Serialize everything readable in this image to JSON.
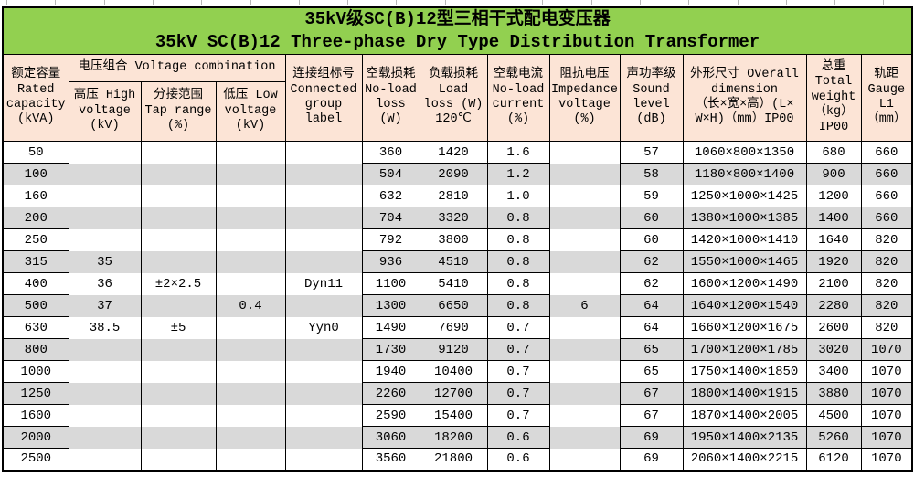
{
  "title": {
    "line1": "35kV级SC(B)12型三相干式配电变压器",
    "line2": "35kV SC(B)12 Three-phase Dry Type Distribution Transformer"
  },
  "colors": {
    "title_bg": "#92d050",
    "header_bg": "#fce4d6",
    "stripe_bg": "#d9d9d9",
    "border": "#000000"
  },
  "header": {
    "rated_capacity": "额定容量\nRated\ncapacity\n(kVA)",
    "voltage_combination_group": "电压组合 Voltage combination",
    "high_voltage": "高压 High\nvoltage\n(kV)",
    "tap_range": "分接范围\nTap range\n(%)",
    "low_voltage": "低压 Low\nvoltage\n(kV)",
    "connected_group": "连接组标号\nConnected\ngroup\nlabel",
    "no_load_loss": "空载损耗\nNo-load\nloss\n(W)",
    "load_loss": "负载损耗\nLoad\nloss (W)\n120℃",
    "no_load_current": "空载电流\nNo-load\ncurrent\n(%)",
    "impedance_voltage": "阻抗电压\nImpedance\nvoltage\n(%)",
    "sound_level": "声功率级\nSound\nlevel\n(dB)",
    "overall_dimension": "外形尺寸 Overall\ndimension\n（长×宽×高）(L×\nW×H)（mm）IP00",
    "total_weight": "总重\nTotal\nweight\n（kg）\nIP00",
    "gauge": "轨距\nGauge\nL1\n（mm）"
  },
  "table": {
    "column_keys": [
      "rated-capacity",
      "high-voltage",
      "tap-range",
      "low-voltage",
      "connected-group",
      "no-load-loss",
      "load-loss",
      "no-load-current",
      "impedance-voltage",
      "sound-level",
      "overall-dimension",
      "total-weight",
      "gauge"
    ],
    "rows": [
      [
        "50",
        "",
        "",
        "",
        "",
        "360",
        "1420",
        "1.6",
        "",
        "57",
        "1060×800×1350",
        "680",
        "660"
      ],
      [
        "100",
        "",
        "",
        "",
        "",
        "504",
        "2090",
        "1.2",
        "",
        "58",
        "1180×800×1400",
        "900",
        "660"
      ],
      [
        "160",
        "",
        "",
        "",
        "",
        "632",
        "2810",
        "1.0",
        "",
        "59",
        "1250×1000×1425",
        "1200",
        "660"
      ],
      [
        "200",
        "",
        "",
        "",
        "",
        "704",
        "3320",
        "0.8",
        "",
        "60",
        "1380×1000×1385",
        "1400",
        "660"
      ],
      [
        "250",
        "",
        "",
        "",
        "",
        "792",
        "3800",
        "0.8",
        "",
        "60",
        "1420×1000×1410",
        "1640",
        "820"
      ],
      [
        "315",
        "35",
        "",
        "",
        "",
        "936",
        "4510",
        "0.8",
        "",
        "62",
        "1550×1000×1465",
        "1920",
        "820"
      ],
      [
        "400",
        "36",
        "±2×2.5",
        "",
        "Dyn11",
        "1100",
        "5410",
        "0.8",
        "",
        "62",
        "1600×1200×1490",
        "2100",
        "820"
      ],
      [
        "500",
        "37",
        "",
        "0.4",
        "",
        "1300",
        "6650",
        "0.8",
        "6",
        "64",
        "1640×1200×1540",
        "2280",
        "820"
      ],
      [
        "630",
        "38.5",
        "±5",
        "",
        "Yyn0",
        "1490",
        "7690",
        "0.7",
        "",
        "64",
        "1660×1200×1675",
        "2600",
        "820"
      ],
      [
        "800",
        "",
        "",
        "",
        "",
        "1730",
        "9120",
        "0.7",
        "",
        "65",
        "1700×1200×1785",
        "3020",
        "1070"
      ],
      [
        "1000",
        "",
        "",
        "",
        "",
        "1940",
        "10400",
        "0.7",
        "",
        "65",
        "1750×1400×1850",
        "3400",
        "1070"
      ],
      [
        "1250",
        "",
        "",
        "",
        "",
        "2260",
        "12700",
        "0.7",
        "",
        "67",
        "1800×1400×1915",
        "3880",
        "1070"
      ],
      [
        "1600",
        "",
        "",
        "",
        "",
        "2590",
        "15400",
        "0.7",
        "",
        "67",
        "1870×1400×2005",
        "4500",
        "1070"
      ],
      [
        "2000",
        "",
        "",
        "",
        "",
        "3060",
        "18200",
        "0.6",
        "",
        "69",
        "1950×1400×2135",
        "5260",
        "1070"
      ],
      [
        "2500",
        "",
        "",
        "",
        "",
        "3560",
        "21800",
        "0.6",
        "",
        "69",
        "2060×1400×2215",
        "6120",
        "1070"
      ]
    ]
  }
}
